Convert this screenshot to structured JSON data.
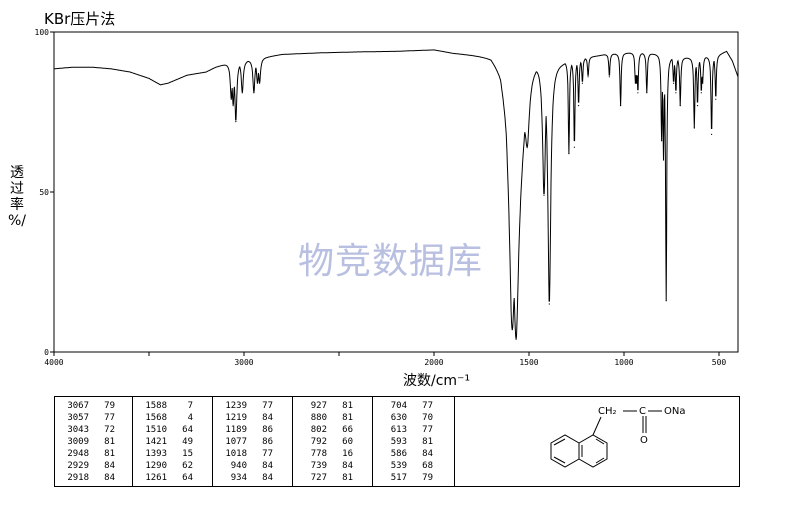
{
  "title": "KBr压片法",
  "watermark": "物竞数据库",
  "chart_data": {
    "type": "line",
    "xlabel": "波数/cm⁻¹",
    "ylabel": [
      "透",
      "过",
      "率",
      "%/"
    ],
    "xlim": [
      4000,
      400
    ],
    "ylim": [
      0,
      100
    ],
    "x_ticks": [
      4000,
      3500,
      3000,
      2500,
      2000,
      1500,
      1000,
      500
    ],
    "x_tick_labels": [
      "4000",
      "",
      "3000",
      "",
      "2000",
      "1500",
      "1000",
      "500"
    ],
    "y_ticks": [
      0,
      50,
      100
    ],
    "y_tick_labels": [
      "0",
      "50",
      "100"
    ],
    "baseline": [
      [
        4000,
        88.5
      ],
      [
        3900,
        89
      ],
      [
        3800,
        89
      ],
      [
        3700,
        88.5
      ],
      [
        3600,
        87.5
      ],
      [
        3500,
        85.5
      ],
      [
        3440,
        83.5
      ],
      [
        3400,
        84
      ],
      [
        3300,
        86.5
      ],
      [
        3200,
        87.5
      ],
      [
        3150,
        89
      ],
      [
        3100,
        90
      ],
      [
        2900,
        92
      ],
      [
        2800,
        93
      ],
      [
        2600,
        93.5
      ],
      [
        2400,
        93.8
      ],
      [
        2200,
        94
      ],
      [
        2000,
        94.5
      ],
      [
        1900,
        93.5
      ],
      [
        1800,
        93
      ],
      [
        1700,
        92.5
      ],
      [
        1650,
        89
      ],
      [
        1620,
        80
      ],
      [
        1600,
        60
      ],
      [
        1590,
        35
      ],
      [
        1500,
        88
      ],
      [
        1450,
        90
      ],
      [
        1300,
        91
      ],
      [
        1200,
        92
      ],
      [
        1100,
        93
      ],
      [
        1000,
        93.5
      ],
      [
        900,
        93.5
      ],
      [
        800,
        93
      ],
      [
        700,
        92
      ],
      [
        600,
        92
      ],
      [
        500,
        93
      ],
      [
        460,
        94
      ],
      [
        430,
        91
      ],
      [
        400,
        86
      ]
    ],
    "peaks": [
      {
        "x": 3067,
        "y": 79
      },
      {
        "x": 3057,
        "y": 77
      },
      {
        "x": 3043,
        "y": 72
      },
      {
        "x": 3009,
        "y": 81
      },
      {
        "x": 2948,
        "y": 81
      },
      {
        "x": 2929,
        "y": 84
      },
      {
        "x": 2918,
        "y": 84
      },
      {
        "x": 1588,
        "y": 7
      },
      {
        "x": 1568,
        "y": 4
      },
      {
        "x": 1510,
        "y": 64
      },
      {
        "x": 1421,
        "y": 49
      },
      {
        "x": 1393,
        "y": 15
      },
      {
        "x": 1290,
        "y": 62
      },
      {
        "x": 1261,
        "y": 64
      },
      {
        "x": 1239,
        "y": 77
      },
      {
        "x": 1219,
        "y": 84
      },
      {
        "x": 1189,
        "y": 86
      },
      {
        "x": 1077,
        "y": 86
      },
      {
        "x": 1018,
        "y": 77
      },
      {
        "x": 940,
        "y": 84
      },
      {
        "x": 934,
        "y": 84
      },
      {
        "x": 927,
        "y": 81
      },
      {
        "x": 880,
        "y": 81
      },
      {
        "x": 802,
        "y": 66
      },
      {
        "x": 792,
        "y": 60
      },
      {
        "x": 778,
        "y": 16
      },
      {
        "x": 739,
        "y": 84
      },
      {
        "x": 727,
        "y": 81
      },
      {
        "x": 704,
        "y": 77
      },
      {
        "x": 630,
        "y": 70
      },
      {
        "x": 613,
        "y": 77
      },
      {
        "x": 593,
        "y": 81
      },
      {
        "x": 586,
        "y": 84
      },
      {
        "x": 539,
        "y": 68
      },
      {
        "x": 517,
        "y": 79
      }
    ]
  },
  "peak_table": {
    "columns": [
      [
        [
          "3067",
          "79"
        ],
        [
          "3057",
          "77"
        ],
        [
          "3043",
          "72"
        ],
        [
          "3009",
          "81"
        ],
        [
          "2948",
          "81"
        ],
        [
          "2929",
          "84"
        ],
        [
          "2918",
          "84"
        ]
      ],
      [
        [
          "1588",
          "7"
        ],
        [
          "1568",
          "4"
        ],
        [
          "1510",
          "64"
        ],
        [
          "1421",
          "49"
        ],
        [
          "1393",
          "15"
        ],
        [
          "1290",
          "62"
        ],
        [
          "1261",
          "64"
        ]
      ],
      [
        [
          "1239",
          "77"
        ],
        [
          "1219",
          "84"
        ],
        [
          "1189",
          "86"
        ],
        [
          "1077",
          "86"
        ],
        [
          "1018",
          "77"
        ],
        [
          "940",
          "84"
        ],
        [
          "934",
          "84"
        ]
      ],
      [
        [
          "927",
          "81"
        ],
        [
          "880",
          "81"
        ],
        [
          "802",
          "66"
        ],
        [
          "792",
          "60"
        ],
        [
          "778",
          "16"
        ],
        [
          "739",
          "84"
        ],
        [
          "727",
          "81"
        ]
      ],
      [
        [
          "704",
          "77"
        ],
        [
          "630",
          "70"
        ],
        [
          "613",
          "77"
        ],
        [
          "593",
          "81"
        ],
        [
          "586",
          "84"
        ],
        [
          "539",
          "68"
        ],
        [
          "517",
          "79"
        ]
      ]
    ]
  },
  "structure": {
    "ch2_label": "CH₂",
    "c_label": "C",
    "ona_label": "ONa",
    "o_label": "O"
  }
}
